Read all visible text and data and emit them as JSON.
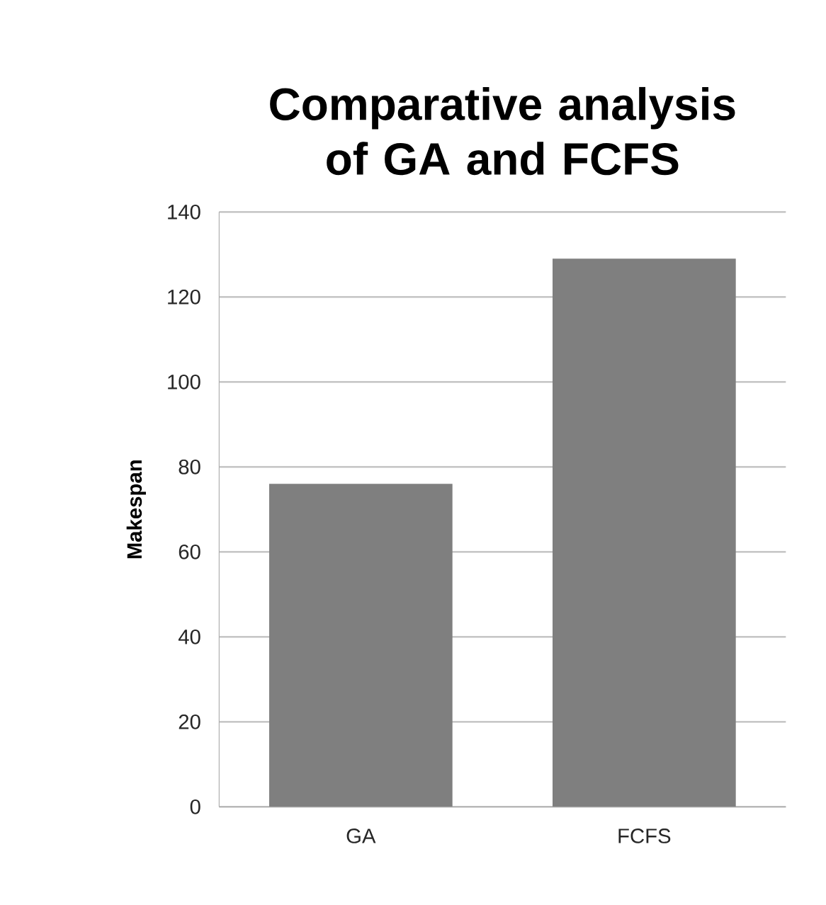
{
  "chart_data": {
    "type": "bar",
    "title": "Comparative analysis of GA and FCFS",
    "ylabel": "Makespan",
    "categories": [
      "GA",
      "FCFS"
    ],
    "values": [
      76,
      129
    ],
    "color": "#7f7f7f",
    "ylim": [
      0,
      140
    ],
    "yticks": [
      0,
      20,
      40,
      60,
      80,
      100,
      120,
      140
    ],
    "grid": "y"
  }
}
